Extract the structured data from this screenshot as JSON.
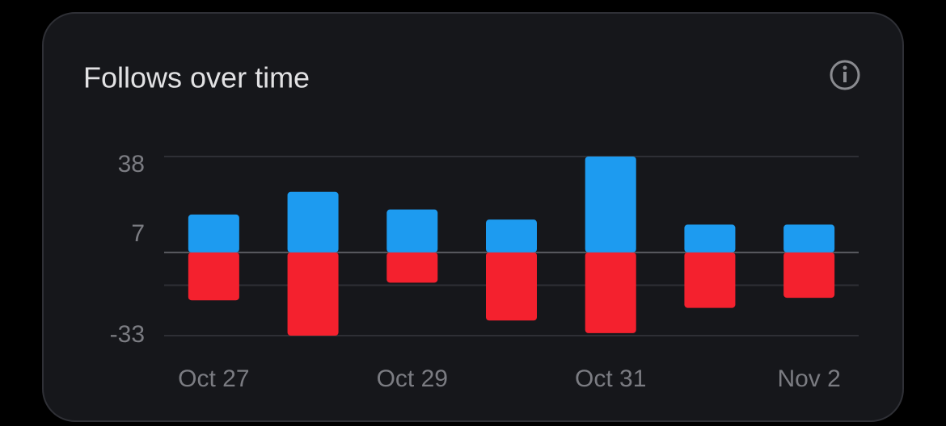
{
  "chart_data": {
    "type": "bar",
    "title": "Follows over time",
    "categories": [
      "Oct 27",
      null,
      "Oct 29",
      null,
      "Oct 31",
      null,
      "Nov 2"
    ],
    "series": [
      {
        "color": "#1d9bf0",
        "values": [
          15,
          24,
          17,
          13,
          38,
          11,
          11
        ]
      },
      {
        "color": "#f4212e",
        "values": [
          -19,
          -33,
          -12,
          -27,
          -32,
          -22,
          -18
        ]
      }
    ],
    "ylim": [
      -33,
      38
    ],
    "yticks": [
      38,
      7,
      -33
    ],
    "gridlines": [
      38,
      0,
      -13,
      -33
    ]
  }
}
